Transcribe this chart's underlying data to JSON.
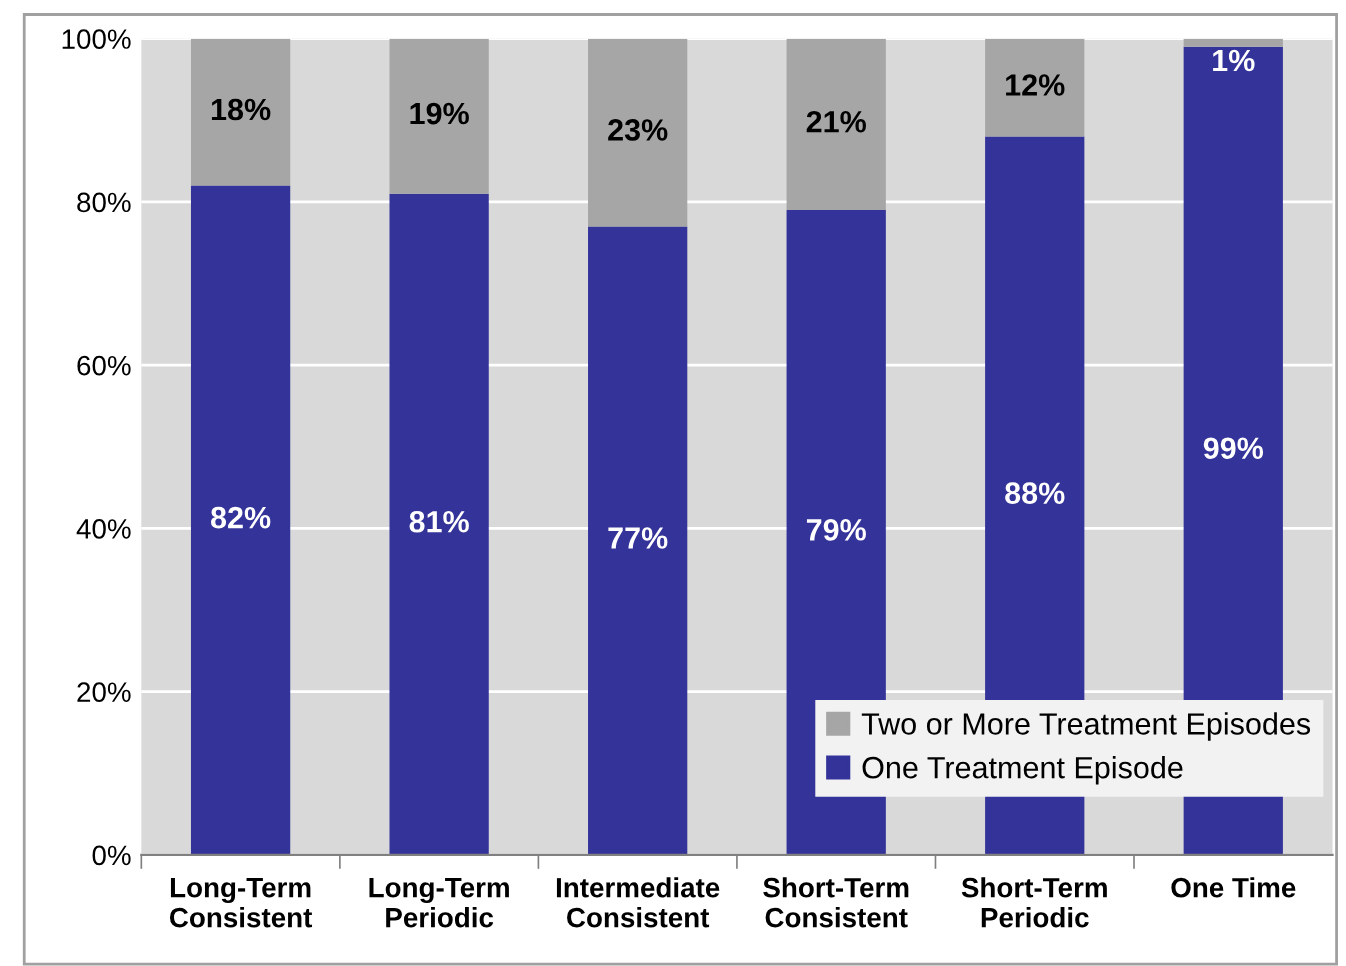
{
  "chart_data": {
    "type": "bar",
    "stacked": true,
    "categories": [
      "Long-Term\nConsistent",
      "Long-Term\nPeriodic",
      "Intermediate\nConsistent",
      "Short-Term\nConsistent",
      "Short-Term\nPeriodic",
      "One Time"
    ],
    "series": [
      {
        "name": "One Treatment Episode",
        "color": "#333399",
        "values": [
          82,
          81,
          77,
          79,
          88,
          99
        ],
        "value_labels": [
          "82%",
          "81%",
          "77%",
          "79%",
          "88%",
          "99%"
        ]
      },
      {
        "name": "Two or More Treatment Episodes",
        "color": "#a6a6a6",
        "values": [
          18,
          19,
          23,
          21,
          12,
          1
        ],
        "value_labels": [
          "18%",
          "19%",
          "23%",
          "21%",
          "12%",
          "1%"
        ]
      }
    ],
    "ylim": [
      0,
      100
    ],
    "yticks": [
      {
        "value": 0,
        "label": "0%"
      },
      {
        "value": 20,
        "label": "20%"
      },
      {
        "value": 40,
        "label": "40%"
      },
      {
        "value": 60,
        "label": "60%"
      },
      {
        "value": 80,
        "label": "80%"
      },
      {
        "value": 100,
        "label": "100%"
      }
    ],
    "grid": "y",
    "legend": "bottom right"
  }
}
